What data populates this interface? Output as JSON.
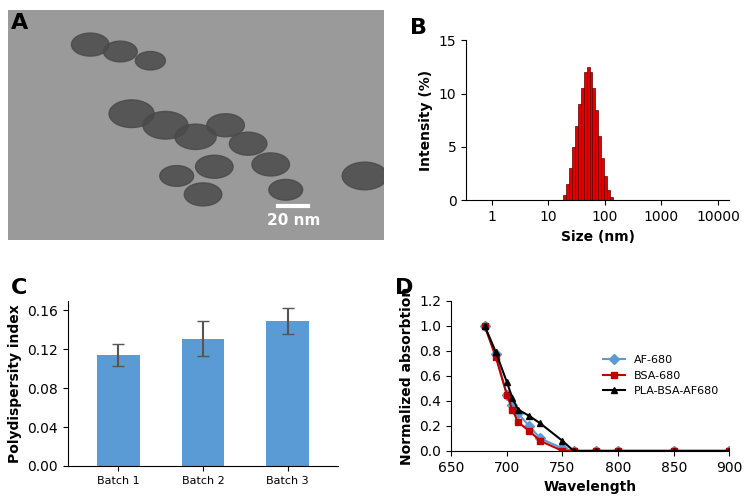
{
  "chart_data": [
    {
      "type": "image",
      "panel": "A",
      "annotations": [
        "20 nm"
      ]
    },
    {
      "type": "histogram",
      "panel": "B",
      "x_label": "Size (nm)",
      "y_label": "Intensity (%)",
      "log": "x",
      "bins": [
        18,
        20.3,
        22.9,
        25.8,
        29.1,
        32.9,
        37.1,
        41.8,
        47.2,
        53.3,
        60.1,
        67.8,
        76.5,
        86.3,
        97.4,
        109.9,
        124,
        140
      ],
      "values": [
        0.5,
        1.5,
        3,
        5,
        7,
        9,
        10.5,
        12,
        12.5,
        12,
        10.5,
        8.5,
        6,
        4,
        2.3,
        1,
        0.3
      ],
      "color": "#e00000",
      "xlim": [
        0.35,
        16000
      ],
      "xticks": [
        1,
        10,
        100,
        1000,
        10000
      ],
      "ylim": [
        0,
        15
      ],
      "yticks": [
        0,
        5,
        10,
        15
      ]
    },
    {
      "type": "bar",
      "panel": "C",
      "y_label": "Polydispersity index",
      "categories": [
        "Batch 1",
        "Batch 2",
        "Batch 3"
      ],
      "values": [
        0.114,
        0.131,
        0.149
      ],
      "errors": [
        0.011,
        0.018,
        0.013
      ],
      "color": "#5b9bd5",
      "ylim": [
        0,
        0.17
      ],
      "yticks": [
        {
          "value": 0,
          "label": "0.00"
        },
        {
          "value": 0.04,
          "label": "0.04"
        },
        {
          "value": 0.08,
          "label": "0.08"
        },
        {
          "value": 0.12,
          "label": "0.12"
        },
        {
          "value": 0.16,
          "label": "0.16"
        }
      ]
    },
    {
      "type": "line",
      "panel": "D",
      "x_label": "Wavelength",
      "y_label": "Normalized absorbtion",
      "x": [
        680,
        690,
        700,
        705,
        710,
        720,
        730,
        750,
        760,
        780,
        800,
        850,
        900
      ],
      "series": [
        {
          "name": "AF-680",
          "color": "#5b9bd5",
          "marker": "diamond",
          "values": [
            1.0,
            0.77,
            0.45,
            0.37,
            0.3,
            0.2,
            0.1,
            0.02,
            0,
            0,
            0,
            0,
            0
          ]
        },
        {
          "name": "BSA-680",
          "color": "#c00000",
          "marker": "square",
          "values": [
            1.0,
            0.75,
            0.45,
            0.33,
            0.23,
            0.16,
            0.08,
            0,
            0,
            0,
            0,
            0,
            0
          ]
        },
        {
          "name": "PLA-BSA-AF680",
          "color": "#000000",
          "marker": "triangle",
          "values": [
            1.0,
            0.79,
            0.55,
            0.42,
            0.33,
            0.28,
            0.22,
            0.08,
            0,
            0,
            0,
            0,
            0
          ]
        }
      ],
      "legend": "center right",
      "xlim": [
        650,
        900
      ],
      "xticks": [
        650,
        700,
        750,
        800,
        850,
        900
      ],
      "ylim": [
        0,
        1.2
      ],
      "yticks": [
        {
          "value": 0,
          "label": "0.0"
        },
        {
          "value": 0.2,
          "label": "0.2"
        },
        {
          "value": 0.4,
          "label": "0.4"
        },
        {
          "value": 0.6,
          "label": "0.6"
        },
        {
          "value": 0.8,
          "label": "0.8"
        },
        {
          "value": 1.0,
          "label": "1.0"
        },
        {
          "value": 1.2,
          "label": "1.2"
        }
      ]
    }
  ]
}
